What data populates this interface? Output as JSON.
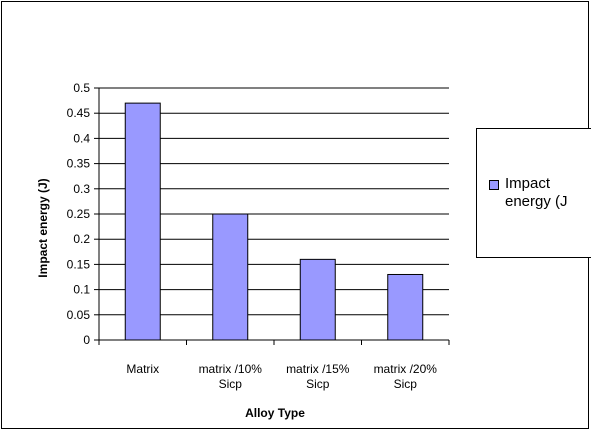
{
  "chart_data": {
    "type": "bar",
    "categories": [
      "Matrix",
      "matrix /10% Sicp",
      "matrix /15% Sicp",
      "matrix /20% Sicp"
    ],
    "category_lines": [
      [
        "Matrix"
      ],
      [
        "matrix /10%",
        "Sicp"
      ],
      [
        "matrix /15%",
        "Sicp"
      ],
      [
        "matrix /20%",
        "Sicp"
      ]
    ],
    "series": [
      {
        "name": "Impact energy (J)",
        "values": [
          0.47,
          0.25,
          0.16,
          0.13
        ]
      }
    ],
    "title": "",
    "xlabel": "Alloy Type",
    "ylabel": "Impact energy (J)",
    "ylim": [
      0,
      0.5
    ],
    "yticks": [
      "0",
      "0.05",
      "0.1",
      "0.15",
      "0.2",
      "0.25",
      "0.3",
      "0.35",
      "0.4",
      "0.45",
      "0.5"
    ],
    "grid": true,
    "legend_position": "right",
    "legend_text_lines": [
      "Impact",
      "energy (J"
    ],
    "colors": {
      "bar": "#9999ff",
      "axis": "#000000"
    }
  }
}
